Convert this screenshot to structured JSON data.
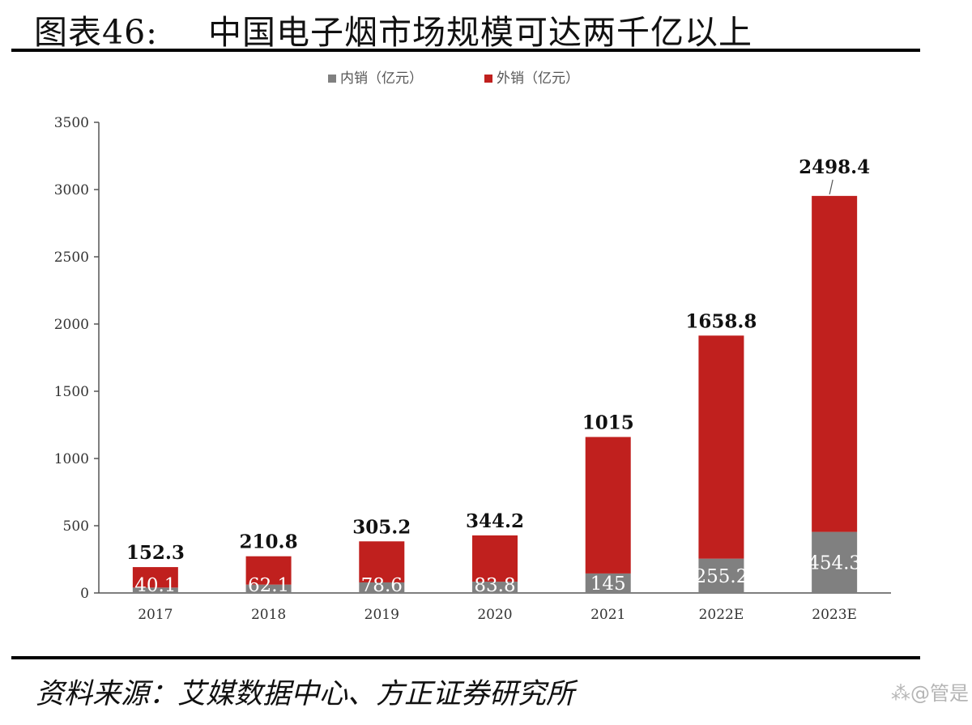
{
  "title": {
    "number": "图表46:",
    "text": "中国电子烟市场规模可达两千亿以上"
  },
  "source": "资料来源：艾媒数据中心、方正证券研究所",
  "watermark": "⁂@管是",
  "colors": {
    "domestic": "#808080",
    "export": "#c0201e",
    "axis": "#555555"
  },
  "chart_data": {
    "type": "bar",
    "stacked": true,
    "categories": [
      "2017",
      "2018",
      "2019",
      "2020",
      "2021",
      "2022E",
      "2023E"
    ],
    "series": [
      {
        "name": "内销（亿元）",
        "values": [
          40.1,
          62.1,
          78.6,
          83.8,
          145,
          255.2,
          454.3
        ],
        "color": "#808080"
      },
      {
        "name": "外销（亿元）",
        "values": [
          152.3,
          210.8,
          305.2,
          344.2,
          1015,
          1658.8,
          2498.4
        ],
        "color": "#c0201e"
      }
    ],
    "domestic_labels": [
      "40.1",
      "62.1",
      "78.6",
      "83.8",
      "145",
      "255.2",
      "454.3"
    ],
    "export_labels": [
      "152.3",
      "210.8",
      "305.2",
      "344.2",
      "1015",
      "1658.8",
      "2498.4"
    ],
    "ylim": [
      0,
      3500
    ],
    "yticks": [
      0,
      500,
      1000,
      1500,
      2000,
      2500,
      3000,
      3500
    ],
    "ytick_labels": [
      "0",
      "500",
      "1000",
      "1500",
      "2000",
      "2500",
      "3000",
      "3500"
    ],
    "xlabel": "",
    "ylabel": "",
    "legend": "top",
    "grid": false
  }
}
